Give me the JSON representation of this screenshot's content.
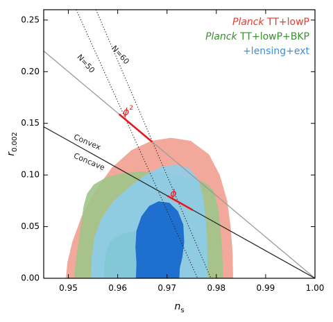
{
  "chart_data": {
    "type": "contour",
    "xlabel": "n",
    "xlabel_sub": "s",
    "ylabel": "r",
    "ylabel_sub": "0.002",
    "xlim": [
      0.945,
      1.0
    ],
    "ylim": [
      0.0,
      0.26
    ],
    "xticks": [
      {
        "v": 0.95,
        "label": "0.95"
      },
      {
        "v": 0.96,
        "label": "0.96"
      },
      {
        "v": 0.97,
        "label": "0.97"
      },
      {
        "v": 0.98,
        "label": "0.98"
      },
      {
        "v": 0.99,
        "label": "0.99"
      },
      {
        "v": 1.0,
        "label": "1.00"
      }
    ],
    "yticks": [
      {
        "v": 0.0,
        "label": "0.00"
      },
      {
        "v": 0.05,
        "label": "0.05"
      },
      {
        "v": 0.1,
        "label": "0.10"
      },
      {
        "v": 0.15,
        "label": "0.15"
      },
      {
        "v": 0.2,
        "label": "0.20"
      },
      {
        "v": 0.25,
        "label": "0.25"
      }
    ],
    "legend": [
      {
        "italic": "Planck",
        "text": " TT+lowP",
        "color": "#e8392b"
      },
      {
        "italic": "Planck",
        "text": " TT+lowP+BKP",
        "color": "#3a8f2e"
      },
      {
        "italic": "",
        "text": "+lensing+ext",
        "color": "#3c8fd6"
      }
    ],
    "series": [
      {
        "name": "Planck TT+lowP",
        "colors": [
          "#f1a090",
          "#ef9b88"
        ],
        "contours": [
          [
            [
              0.9495,
              0.0
            ],
            [
              0.9498,
              0.015
            ],
            [
              0.9508,
              0.035
            ],
            [
              0.9527,
              0.06
            ],
            [
              0.9555,
              0.085
            ],
            [
              0.9588,
              0.107
            ],
            [
              0.9628,
              0.124
            ],
            [
              0.9668,
              0.133
            ],
            [
              0.9708,
              0.136
            ],
            [
              0.9748,
              0.133
            ],
            [
              0.9785,
              0.12
            ],
            [
              0.9807,
              0.1
            ],
            [
              0.9822,
              0.075
            ],
            [
              0.9829,
              0.05
            ],
            [
              0.9833,
              0.025
            ],
            [
              0.9834,
              0.0
            ]
          ]
        ]
      },
      {
        "name": "Planck TT+lowP+BKP",
        "colors": [
          "#9ec48a",
          "#2f8a1f"
        ],
        "contours": [
          [
            [
              0.9512,
              0.0
            ],
            [
              0.9514,
              0.012
            ],
            [
              0.9519,
              0.03
            ],
            [
              0.9525,
              0.05
            ],
            [
              0.9531,
              0.07
            ],
            [
              0.9538,
              0.082
            ],
            [
              0.9552,
              0.091
            ],
            [
              0.9578,
              0.098
            ],
            [
              0.9612,
              0.102
            ],
            [
              0.9652,
              0.1035
            ],
            [
              0.9694,
              0.1025
            ],
            [
              0.9736,
              0.098
            ],
            [
              0.9776,
              0.093
            ],
            [
              0.9794,
              0.085
            ],
            [
              0.9803,
              0.07
            ],
            [
              0.9808,
              0.05
            ],
            [
              0.9812,
              0.025
            ],
            [
              0.9814,
              0.0
            ]
          ],
          [
            [
              0.9572,
              0.0
            ],
            [
              0.9573,
              0.012
            ],
            [
              0.9576,
              0.025
            ],
            [
              0.9585,
              0.036
            ],
            [
              0.9608,
              0.043
            ],
            [
              0.9638,
              0.046
            ],
            [
              0.9664,
              0.047
            ],
            [
              0.9676,
              0.046
            ],
            [
              0.9675,
              0.025
            ],
            [
              0.9674,
              0.0
            ]
          ]
        ]
      },
      {
        "name": "+lensing+ext",
        "colors": [
          "#8ecdea",
          "#1f6fce"
        ],
        "contours": [
          [
            [
              0.9546,
              0.0
            ],
            [
              0.9547,
              0.02
            ],
            [
              0.9553,
              0.04
            ],
            [
              0.9567,
              0.058
            ],
            [
              0.9592,
              0.075
            ],
            [
              0.9623,
              0.088
            ],
            [
              0.9656,
              0.1
            ],
            [
              0.9688,
              0.108
            ],
            [
              0.9718,
              0.11
            ],
            [
              0.9744,
              0.107
            ],
            [
              0.9762,
              0.097
            ],
            [
              0.9773,
              0.08
            ],
            [
              0.9778,
              0.06
            ],
            [
              0.9781,
              0.04
            ],
            [
              0.9782,
              0.02
            ],
            [
              0.9783,
              0.0
            ]
          ],
          [
            [
              0.9637,
              0.0
            ],
            [
              0.9638,
              0.015
            ],
            [
              0.9636,
              0.03
            ],
            [
              0.9638,
              0.046
            ],
            [
              0.9648,
              0.06
            ],
            [
              0.9664,
              0.07
            ],
            [
              0.9683,
              0.0745
            ],
            [
              0.9705,
              0.073
            ],
            [
              0.9722,
              0.065
            ],
            [
              0.9733,
              0.052
            ],
            [
              0.9735,
              0.035
            ],
            [
              0.9731,
              0.02
            ],
            [
              0.9726,
              0.01
            ],
            [
              0.9725,
              0.0
            ]
          ]
        ]
      }
    ],
    "lines": [
      {
        "label": "N=60",
        "style": "dotted",
        "color": "#222222",
        "points": [
          [
            0.9556,
            0.26
          ],
          [
            0.9789,
            0.0
          ]
        ]
      },
      {
        "label": "N=50",
        "style": "dotted",
        "color": "#222222",
        "points": [
          [
            0.9516,
            0.26
          ],
          [
            0.9762,
            0.0
          ]
        ]
      },
      {
        "label": "",
        "style": "solid",
        "color": "#9a9a9a",
        "points": [
          [
            0.945,
            0.22
          ],
          [
            1.0,
            0.0
          ]
        ]
      },
      {
        "label": "",
        "style": "solid",
        "color": "#2a2a2a",
        "points": [
          [
            0.945,
            0.1467
          ],
          [
            1.0,
            0.0
          ]
        ]
      },
      {
        "label": "",
        "style": "solid",
        "color": "#e8171b",
        "width": 2.6,
        "points": [
          [
            0.9603,
            0.1588
          ],
          [
            0.967,
            0.132
          ]
        ]
      },
      {
        "label": "",
        "style": "solid",
        "color": "#e8171b",
        "width": 2.6,
        "points": [
          [
            0.9701,
            0.0798
          ],
          [
            0.9752,
            0.0661
          ]
        ]
      }
    ],
    "annotations": [
      {
        "text": "N=60",
        "x": 0.9605,
        "y": 0.216,
        "rotate": 48,
        "color": "#222222",
        "size": 11
      },
      {
        "text": "N=50",
        "x": 0.9535,
        "y": 0.2075,
        "rotate": 48,
        "color": "#222222",
        "size": 11
      },
      {
        "text": "Convex",
        "x": 0.9538,
        "y": 0.1315,
        "rotate": 23,
        "color": "#222222",
        "size": 11
      },
      {
        "text": "Concave",
        "x": 0.9542,
        "y": 0.1125,
        "rotate": 23,
        "color": "#222222",
        "size": 11
      },
      {
        "text": "ϕ",
        "sup": "2",
        "x": 0.9621,
        "y": 0.1605,
        "rotate": 0,
        "color": "#e8171b",
        "size": 14,
        "italic": true
      },
      {
        "text": "ϕ",
        "x": 0.9713,
        "y": 0.0815,
        "rotate": 0,
        "color": "#e8171b",
        "size": 14,
        "italic": true
      }
    ]
  }
}
